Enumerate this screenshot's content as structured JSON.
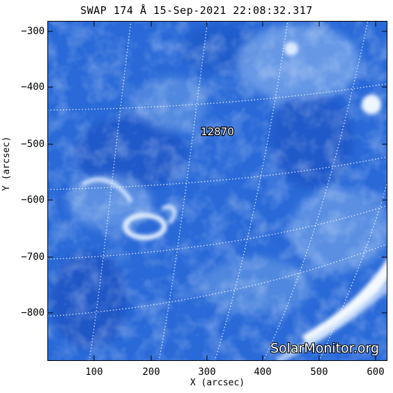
{
  "title": "SWAP 174 Å 15-Sep-2021 22:08:32.317",
  "xaxis": {
    "label": "X (arcsec)",
    "ticks": [
      "100",
      "200",
      "300",
      "400",
      "500",
      "600"
    ]
  },
  "yaxis": {
    "label": "Y (arcsec)",
    "ticks": [
      "−300",
      "−400",
      "−500",
      "−600",
      "−700",
      "−800"
    ]
  },
  "region_label": "12870",
  "watermark": "SolarMonitor.org",
  "colors": {
    "base": "#2a68d6",
    "dark": "#1a4fbf",
    "bright": "#e8f2ff",
    "grid": "#ffffff"
  }
}
